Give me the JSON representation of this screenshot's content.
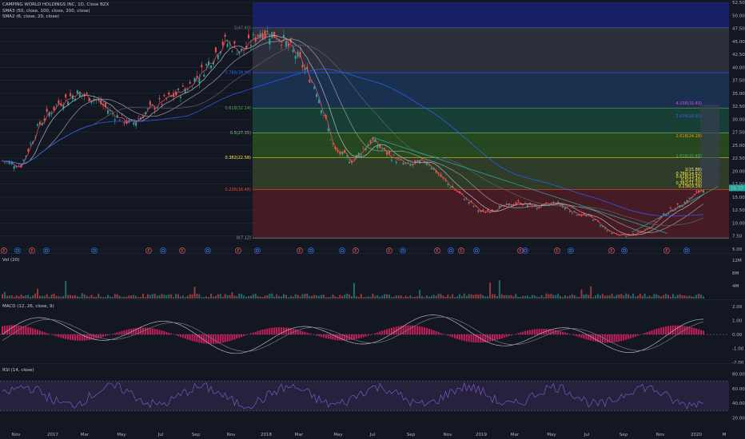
{
  "legends": {
    "main": [
      "CAMPING WORLD HOLDINGS INC, 1D, Close BZX",
      "SMA3 (50, close, 100, close, 200, close)",
      "SMA2 (6, close, 20, close)"
    ],
    "volume": "Vol (20)",
    "macd": "MACD (12, 26, close, 9)",
    "rsi": "RSI (14, close)"
  },
  "price_axis": [
    "52.50",
    "50.00",
    "47.50",
    "45.00",
    "42.50",
    "40.00",
    "37.50",
    "35.00",
    "32.50",
    "30.00",
    "27.50",
    "25.00",
    "22.50",
    "20.00",
    "17.50",
    "15.00",
    "12.50",
    "10.00",
    "7.50",
    "5.00"
  ],
  "last_price": "16.77",
  "volume_axis": [
    "12M",
    "8M",
    "4M"
  ],
  "macd_axis": [
    "2.00",
    "1.00",
    "0.00",
    "-1.00",
    "-2.00"
  ],
  "rsi_axis": [
    "80.00",
    "60.00",
    "40.00",
    "20.00"
  ],
  "time_axis": [
    "Nov",
    "2017",
    "Mar",
    "May",
    "Jul",
    "Sep",
    "Nov",
    "2018",
    "Mar",
    "May",
    "Jul",
    "Sep",
    "Nov",
    "2019",
    "Mar",
    "May",
    "Jul",
    "Sep",
    "Nov",
    "2020",
    "M"
  ],
  "fib_left": [
    "1(47.60)",
    "0.786(38.96)",
    "0.618(32.14)",
    "0.5(27.35)",
    "0.382(22.58)",
    "0.236(16.48)",
    "0(7.12)"
  ],
  "fib_right": [
    "4.236(32.49)",
    "3.618(28.91)",
    "2.618(24.28)",
    "1.618(20.48)",
    "1(15.86)",
    "0.786(14.82)",
    "0.618(13.42)",
    "0.5(12.40)",
    "0.382(11.20)",
    "0.236(9.39)"
  ],
  "markers": [
    "E",
    "D",
    "E",
    "D",
    "D",
    "E",
    "D",
    "E",
    "D",
    "E",
    "D",
    "E",
    "D",
    "D",
    "E",
    "E",
    "D",
    "E",
    "D",
    "E",
    "D",
    "E",
    "D",
    "E",
    "D",
    "E",
    "D",
    "E",
    "D"
  ],
  "colors": {
    "background": "#131722",
    "grid": "#2a2e39",
    "up": "#26a69a",
    "down": "#ef5350",
    "sma50": "#9598a1",
    "sma100": "#5d606b",
    "sma200": "#2962ff",
    "sma6": "#f7525f",
    "sma20": "#b2b5be",
    "rsi_band": "#7e57c2",
    "macd_line": "#b2b5be",
    "macd_signal": "#787b86"
  },
  "chart_data": [
    {
      "type": "line",
      "title": "CAMPING WORLD HOLDINGS INC, 1D, Close BZX",
      "ylim": [
        5,
        52.5
      ],
      "x": [
        "Nov 2016",
        "Dec 2016",
        "2017",
        "Feb 2017",
        "Mar 2017",
        "Apr 2017",
        "May 2017",
        "Jun 2017",
        "Jul 2017",
        "Aug 2017",
        "Sep 2017",
        "Oct 2017",
        "Nov 2017",
        "Dec 2017",
        "2018",
        "Feb 2018",
        "Mar 2018",
        "Apr 2018",
        "May 2018",
        "Jun 2018",
        "Jul 2018",
        "Aug 2018",
        "Sep 2018",
        "Oct 2018",
        "Nov 2018",
        "Dec 2018",
        "2019",
        "Feb 2019",
        "Mar 2019",
        "Apr 2019",
        "May 2019",
        "Jun 2019",
        "Jul 2019",
        "Aug 2019",
        "Sep 2019",
        "Oct 2019",
        "Nov 2019",
        "Dec 2019",
        "2020"
      ],
      "series": [
        {
          "name": "Close",
          "values": [
            22,
            21,
            29,
            33,
            35,
            34,
            31,
            29,
            32,
            34,
            36,
            40,
            45,
            43,
            47,
            46,
            42,
            36,
            24,
            22,
            26,
            23,
            21,
            22,
            18,
            15,
            12,
            13,
            14,
            13,
            14,
            12,
            11,
            8,
            7.5,
            9,
            12,
            14,
            16.77
          ]
        }
      ]
    },
    {
      "type": "bar",
      "title": "Vol (20)",
      "ylim": [
        0,
        12
      ]
    },
    {
      "type": "line",
      "title": "MACD (12, 26, close, 9)",
      "ylim": [
        -2,
        2
      ]
    },
    {
      "type": "line",
      "title": "RSI (14, close)",
      "ylim": [
        20,
        80
      ],
      "bands": [
        30,
        70
      ]
    }
  ]
}
